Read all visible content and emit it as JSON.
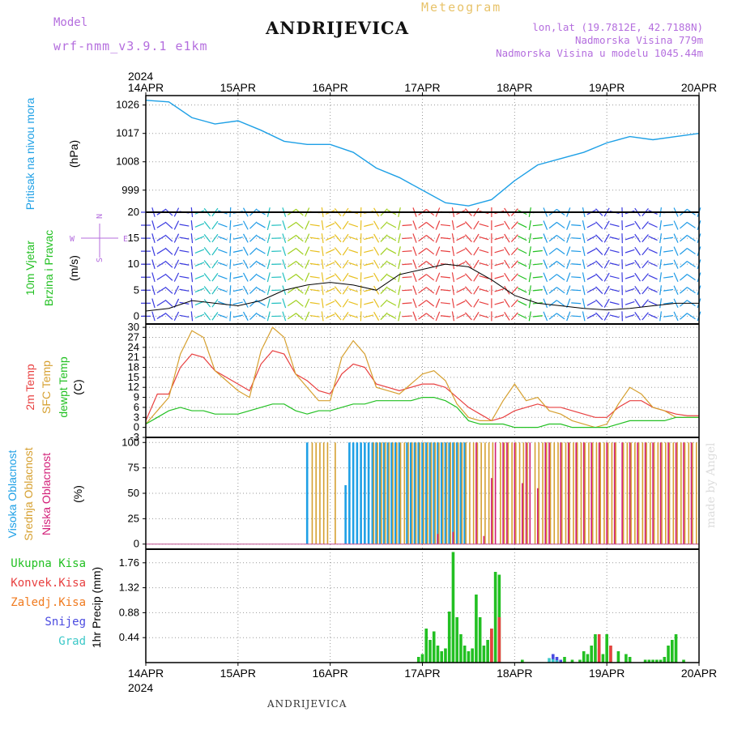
{
  "header": {
    "model_label": "Model",
    "model_name": "wrf-nmm_v3.9.1 e1km",
    "station": "ANDRIJEVICA",
    "meteogram": "Meteogram",
    "lonlat": "lon,lat (19.7812E, 42.7188N)",
    "altitude": "Nadmorska Visina 779m",
    "model_altitude": "Nadmorska Visina u modelu 1045.44m",
    "bottom_station": "ANDRIJEVICA",
    "watermark": "made by Angel"
  },
  "axis": {
    "year": "2024",
    "dates": [
      "14APR",
      "15APR",
      "16APR",
      "17APR",
      "18APR",
      "19APR",
      "20APR"
    ]
  },
  "colors": {
    "pressure": "#1ea0e6",
    "temp2m": "#e84040",
    "sfctemp": "#d6a030",
    "dewpt": "#22c022",
    "high_cloud": "#1ea0e6",
    "mid_cloud": "#d6a030",
    "low_cloud": "#d21e78",
    "total_precip": "#22c022",
    "conv_precip": "#e84040",
    "frozen_precip": "#f07a1e",
    "snow": "#4a4ae0",
    "graupel": "#3cc8c8"
  },
  "panels": {
    "pressure": {
      "labels": [
        "Pritisak na nivou mora",
        "(hPa)"
      ]
    },
    "wind": {
      "labels": [
        "10m Vjetar",
        "Brzina i Pravac",
        "(m/s)"
      ],
      "compass": [
        "W",
        "E",
        "N",
        "S"
      ]
    },
    "temp": {
      "labels": [
        "2m Temp",
        "SFC Temp",
        "dewpt Temp",
        "(C)"
      ]
    },
    "cloud": {
      "labels": [
        "Visoka Oblacnost",
        "Srednja Oblacnost",
        "Niska Oblacnost",
        "(%)"
      ]
    },
    "precip": {
      "labels": [
        "Ukupna Kisa",
        "Konvek.Kisa",
        "Zaledj.Kisa",
        "Snijeg",
        "Grad",
        "1hr Precip (mm)"
      ]
    }
  },
  "chart_data": [
    {
      "type": "line",
      "name": "Pritisak na nivou mora",
      "ylabel": "(hPa)",
      "ylim": [
        992,
        1029
      ],
      "yticks": [
        999,
        1008,
        1017,
        1026
      ],
      "x_hours": [
        0,
        6,
        12,
        18,
        24,
        30,
        36,
        42,
        48,
        54,
        60,
        66,
        72,
        78,
        84,
        90,
        96,
        102,
        108,
        114,
        120,
        126,
        132,
        138,
        144
      ],
      "values": [
        1027.5,
        1027,
        1022,
        1020,
        1021,
        1018,
        1014.5,
        1013.5,
        1013.5,
        1011,
        1006,
        1003,
        999,
        995,
        994,
        996,
        1002,
        1007,
        1009,
        1011,
        1014,
        1016,
        1015,
        1016,
        1017
      ]
    },
    {
      "type": "line",
      "name": "10m Vjetar",
      "ylabel": "(m/s)",
      "ylim": [
        -1.5,
        20
      ],
      "yticks": [
        0,
        5,
        10,
        15,
        20
      ],
      "x_hours": [
        0,
        6,
        12,
        18,
        24,
        30,
        36,
        42,
        48,
        54,
        60,
        66,
        72,
        78,
        84,
        90,
        96,
        102,
        108,
        114,
        120,
        126,
        132,
        138,
        144
      ],
      "values": [
        1,
        1.5,
        3,
        2.5,
        2,
        3,
        5,
        6,
        6.5,
        6,
        5,
        8,
        9,
        10,
        9.5,
        7,
        4,
        2.5,
        2,
        1.5,
        1.2,
        1.5,
        2,
        2.5,
        2.5
      ]
    },
    {
      "type": "line",
      "name": "Temperatura",
      "ylabel": "(C)",
      "ylim": [
        -3,
        31
      ],
      "yticks": [
        -3,
        0,
        3,
        6,
        9,
        12,
        15,
        18,
        21,
        24,
        27,
        30
      ],
      "x_hours": [
        0,
        3,
        6,
        9,
        12,
        15,
        18,
        21,
        24,
        27,
        30,
        33,
        36,
        39,
        42,
        45,
        48,
        51,
        54,
        57,
        60,
        63,
        66,
        69,
        72,
        75,
        78,
        81,
        84,
        87,
        90,
        93,
        96,
        99,
        102,
        105,
        108,
        111,
        114,
        117,
        120,
        123,
        126,
        129,
        132,
        135,
        138,
        141,
        144
      ],
      "series": [
        {
          "name": "2m Temp",
          "values": [
            2,
            10,
            10,
            18,
            22,
            21,
            17,
            15,
            13,
            11,
            19,
            23,
            22,
            16,
            14,
            11,
            10,
            16,
            19,
            18,
            13,
            12,
            11,
            12,
            13,
            13,
            12,
            9,
            6,
            4,
            2,
            3,
            5,
            6,
            7,
            6,
            6,
            5,
            4,
            3,
            3,
            6,
            8,
            8,
            6,
            5,
            4,
            3.5,
            3.5
          ]
        },
        {
          "name": "SFC Temp",
          "values": [
            1,
            5,
            9,
            22,
            29,
            27,
            17,
            14,
            11,
            9,
            23,
            30,
            27,
            16,
            12,
            8,
            8,
            21,
            26,
            22,
            12,
            11,
            10,
            13,
            16,
            17,
            14,
            7,
            3,
            2,
            2,
            8,
            13,
            8,
            9,
            5,
            4,
            2,
            1,
            0,
            1,
            7,
            12,
            10,
            6,
            5,
            3,
            3,
            3
          ]
        },
        {
          "name": "dewpt Temp",
          "values": [
            1,
            3,
            5,
            6,
            5,
            5,
            4,
            4,
            4,
            5,
            6,
            7,
            7,
            5,
            4,
            5,
            5,
            6,
            7,
            7,
            8,
            8,
            8,
            8,
            9,
            9,
            8,
            6,
            2,
            1,
            1,
            1,
            0,
            0,
            0,
            1,
            1,
            0,
            0,
            0,
            0,
            1,
            2,
            2,
            2,
            2,
            3,
            3,
            3
          ]
        }
      ]
    },
    {
      "type": "bar",
      "name": "Oblacnost",
      "ylabel": "(%)",
      "ylim": [
        -5,
        105
      ],
      "yticks": [
        0,
        25,
        50,
        75,
        100
      ],
      "series": [
        {
          "name": "Visoka Oblacnost",
          "x_hours": [
            42,
            52,
            53,
            54,
            55,
            56,
            57,
            58,
            59,
            60,
            61,
            62,
            63,
            64,
            65,
            66,
            68,
            69,
            70,
            71,
            72,
            73,
            74,
            75,
            76,
            77,
            78,
            79,
            80,
            81,
            82,
            83
          ],
          "values": [
            100,
            58,
            100,
            100,
            100,
            100,
            100,
            100,
            100,
            100,
            100,
            100,
            100,
            100,
            100,
            100,
            100,
            100,
            100,
            100,
            100,
            100,
            100,
            100,
            100,
            100,
            100,
            100,
            100,
            100,
            100,
            100
          ]
        },
        {
          "name": "Srednja Oblacnost",
          "x_hours": [
            43,
            44,
            45,
            46,
            47,
            49,
            59,
            60,
            61,
            62,
            63,
            64,
            65,
            66,
            67,
            68,
            69,
            70,
            71,
            72,
            73,
            74,
            75,
            76,
            77,
            78,
            79,
            80,
            81,
            82,
            83,
            84,
            85,
            86,
            87,
            88,
            89,
            90,
            92,
            93,
            94,
            95,
            96,
            97,
            98,
            99,
            101,
            102,
            103,
            104,
            105,
            106,
            107,
            108,
            109,
            110,
            111,
            112,
            113,
            114,
            115,
            116,
            117,
            118,
            119,
            120,
            121,
            122,
            124,
            125,
            126,
            127,
            128,
            129,
            130,
            131,
            132,
            133,
            134,
            135,
            136,
            137,
            138,
            139,
            140,
            141,
            142,
            143
          ],
          "values": [
            100,
            100,
            100,
            100,
            100,
            100,
            100,
            100,
            100,
            100,
            100,
            100,
            100,
            100,
            100,
            100,
            100,
            100,
            100,
            100,
            100,
            100,
            100,
            100,
            100,
            100,
            100,
            100,
            100,
            100,
            100,
            100,
            100,
            100,
            100,
            100,
            100,
            100,
            100,
            100,
            100,
            100,
            100,
            100,
            100,
            100,
            100,
            100,
            100,
            100,
            100,
            100,
            100,
            100,
            100,
            100,
            100,
            100,
            100,
            100,
            100,
            100,
            100,
            100,
            100,
            100,
            100,
            100,
            100,
            100,
            100,
            100,
            100,
            100,
            100,
            100,
            100,
            100,
            100,
            100,
            100,
            100,
            100,
            100,
            100,
            100,
            100,
            100
          ]
        },
        {
          "name": "Niska Oblacnost",
          "x_hours": [
            76,
            80,
            86,
            88,
            90,
            91,
            93,
            94,
            96,
            98,
            99,
            100,
            102,
            104,
            105,
            108,
            110,
            112,
            114,
            116,
            118,
            120,
            122,
            124,
            126,
            128,
            130,
            132,
            134,
            136,
            138,
            140,
            142
          ],
          "values": [
            10,
            12,
            100,
            8,
            65,
            100,
            100,
            100,
            100,
            60,
            100,
            100,
            55,
            100,
            100,
            100,
            100,
            100,
            100,
            100,
            100,
            100,
            100,
            100,
            100,
            100,
            100,
            100,
            100,
            100,
            100,
            100,
            100
          ]
        }
      ]
    },
    {
      "type": "bar",
      "name": "1hr Precip",
      "ylabel": "1hr Precip (mm)",
      "ylim": [
        0,
        2
      ],
      "yticks": [
        0.44,
        0.88,
        1.32,
        1.76
      ],
      "series": [
        {
          "name": "Ukupna Kisa",
          "x_hours": [
            71,
            72,
            73,
            74,
            75,
            76,
            77,
            78,
            79,
            80,
            81,
            82,
            83,
            84,
            85,
            86,
            87,
            88,
            89,
            90,
            91,
            92,
            98,
            109,
            111,
            113,
            114,
            115,
            116,
            117,
            118,
            119,
            120,
            121,
            123,
            125,
            126,
            130,
            131,
            132,
            133,
            134,
            135,
            136,
            137,
            138,
            140
          ],
          "values": [
            0.1,
            0.15,
            0.6,
            0.4,
            0.55,
            0.3,
            0.2,
            0.25,
            0.9,
            1.95,
            0.8,
            0.5,
            0.3,
            0.2,
            0.25,
            1.2,
            0.8,
            0.3,
            0.4,
            0.6,
            1.6,
            1.55,
            0.05,
            0.1,
            0.05,
            0.05,
            0.2,
            0.15,
            0.3,
            0.5,
            0.25,
            0.15,
            0.5,
            0.3,
            0.2,
            0.15,
            0.1,
            0.05,
            0.05,
            0.05,
            0.05,
            0.05,
            0.1,
            0.3,
            0.4,
            0.5,
            0.05
          ]
        },
        {
          "name": "Konvek.Kisa",
          "x_hours": [
            90,
            92,
            118,
            121
          ],
          "values": [
            0.6,
            0.8,
            0.5,
            0.3
          ]
        },
        {
          "name": "Zaledj.Kisa",
          "x_hours": [],
          "values": []
        },
        {
          "name": "Snijeg",
          "x_hours": [
            106,
            107,
            108
          ],
          "values": [
            0.15,
            0.1,
            0.05
          ]
        },
        {
          "name": "Grad",
          "x_hours": [
            105,
            106,
            107
          ],
          "values": [
            0.08,
            0.06,
            0.04
          ]
        }
      ]
    }
  ]
}
